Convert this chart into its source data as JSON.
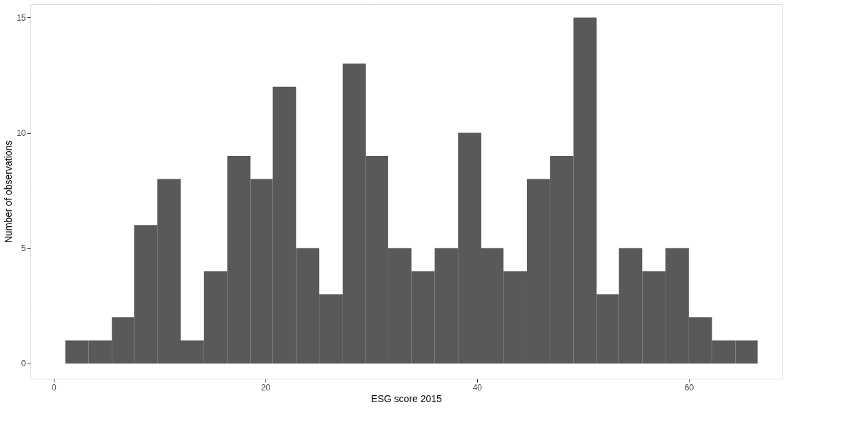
{
  "chart_data": {
    "type": "histogram",
    "xlabel": "ESG score 2015",
    "ylabel": "Number of observations",
    "color": "#595959",
    "bins": [
      1.1,
      3.3,
      5.5,
      7.6,
      9.8,
      12.0,
      14.2,
      16.4,
      18.6,
      20.7,
      22.9,
      25.1,
      27.3,
      29.5,
      31.6,
      33.8,
      36.0,
      38.2,
      40.4,
      42.5,
      44.7,
      46.9,
      49.1,
      51.3,
      53.4,
      55.6,
      57.8,
      60.0,
      62.2,
      64.4,
      66.5
    ],
    "values": [
      1,
      1,
      2,
      6,
      8,
      1,
      4,
      9,
      8,
      12,
      5,
      3,
      13,
      9,
      5,
      4,
      5,
      10,
      5,
      4,
      8,
      9,
      15,
      3,
      5,
      4,
      5,
      2,
      1,
      1
    ],
    "xlim": [
      -2.2,
      68.8
    ],
    "xticks": [
      0,
      20,
      40,
      60
    ],
    "ylim": [
      -0.66,
      15.58
    ],
    "yticks": [
      0,
      5,
      10,
      15
    ],
    "grid": true
  }
}
